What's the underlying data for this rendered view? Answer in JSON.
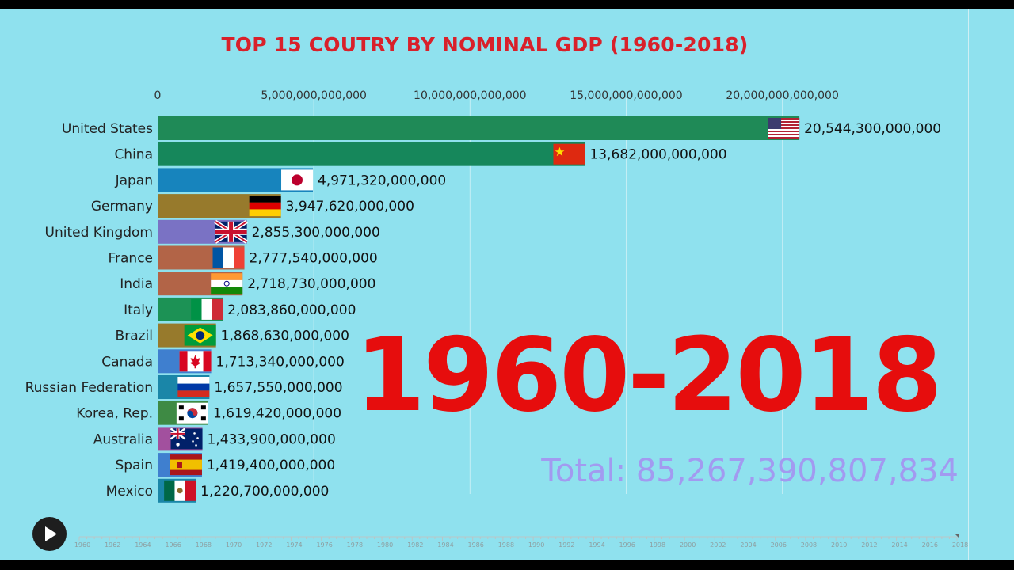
{
  "title": "TOP 15 COUTRY BY NOMINAL GDP (1960-2018)",
  "year_label": "1960-2018",
  "total_label": "Total: 85,267,390,807,834",
  "colors": {
    "background": "#8fe1ee",
    "title": "#d9202a",
    "year": "#e60d0d",
    "total": "#a29af0"
  },
  "play_icon": "play-icon",
  "timeline_ticks": [
    "1960",
    "1962",
    "1964",
    "1966",
    "1968",
    "1970",
    "1972",
    "1974",
    "1976",
    "1978",
    "1980",
    "1982",
    "1984",
    "1986",
    "1988",
    "1990",
    "1992",
    "1994",
    "1996",
    "1998",
    "2000",
    "2002",
    "2004",
    "2006",
    "2008",
    "2010",
    "2012",
    "2014",
    "2016",
    "2018"
  ],
  "chart_data": {
    "type": "bar",
    "orientation": "horizontal",
    "x_ticks": [
      "0",
      "5,000,000,000,000",
      "10,000,000,000,000",
      "15,000,000,000,000",
      "20,000,000,000,000"
    ],
    "x_tick_values": [
      0,
      5000000000000,
      10000000000000,
      15000000000000,
      20000000000000
    ],
    "xlim": [
      0,
      21100000000000
    ],
    "grid": true,
    "bars": [
      {
        "country": "United States",
        "value": 20544300000000,
        "label": "20,544,300,000,000",
        "color": "#1f8a57",
        "flag": "us-flag"
      },
      {
        "country": "China",
        "value": 13682000000000,
        "label": "13,682,000,000,000",
        "color": "#16875b",
        "flag": "china-flag"
      },
      {
        "country": "Japan",
        "value": 4971320000000,
        "label": "4,971,320,000,000",
        "color": "#1784bd",
        "flag": "japan-flag"
      },
      {
        "country": "Germany",
        "value": 3947620000000,
        "label": "3,947,620,000,000",
        "color": "#977a2c",
        "flag": "germany-flag"
      },
      {
        "country": "United Kingdom",
        "value": 2855300000000,
        "label": "2,855,300,000,000",
        "color": "#7a72c4",
        "flag": "uk-flag"
      },
      {
        "country": "France",
        "value": 2777540000000,
        "label": "2,777,540,000,000",
        "color": "#b26447",
        "flag": "france-flag"
      },
      {
        "country": "India",
        "value": 2718730000000,
        "label": "2,718,730,000,000",
        "color": "#b26447",
        "flag": "india-flag"
      },
      {
        "country": "Italy",
        "value": 2083860000000,
        "label": "2,083,860,000,000",
        "color": "#1c9255",
        "flag": "italy-flag"
      },
      {
        "country": "Brazil",
        "value": 1868630000000,
        "label": "1,868,630,000,000",
        "color": "#977a2c",
        "flag": "brazil-flag"
      },
      {
        "country": "Canada",
        "value": 1713340000000,
        "label": "1,713,340,000,000",
        "color": "#3f7fcf",
        "flag": "canada-flag"
      },
      {
        "country": "Russian Federation",
        "value": 1657550000000,
        "label": "1,657,550,000,000",
        "color": "#1a86a8",
        "flag": "russia-flag"
      },
      {
        "country": "Korea, Rep.",
        "value": 1619420000000,
        "label": "1,619,420,000,000",
        "color": "#3e8a44",
        "flag": "korea-flag"
      },
      {
        "country": "Australia",
        "value": 1433900000000,
        "label": "1,433,900,000,000",
        "color": "#a2509e",
        "flag": "australia-flag"
      },
      {
        "country": "Spain",
        "value": 1419400000000,
        "label": "1,419,400,000,000",
        "color": "#3f7fcf",
        "flag": "spain-flag"
      },
      {
        "country": "Mexico",
        "value": 1220700000000,
        "label": "1,220,700,000,000",
        "color": "#1a86a8",
        "flag": "mexico-flag"
      }
    ]
  }
}
